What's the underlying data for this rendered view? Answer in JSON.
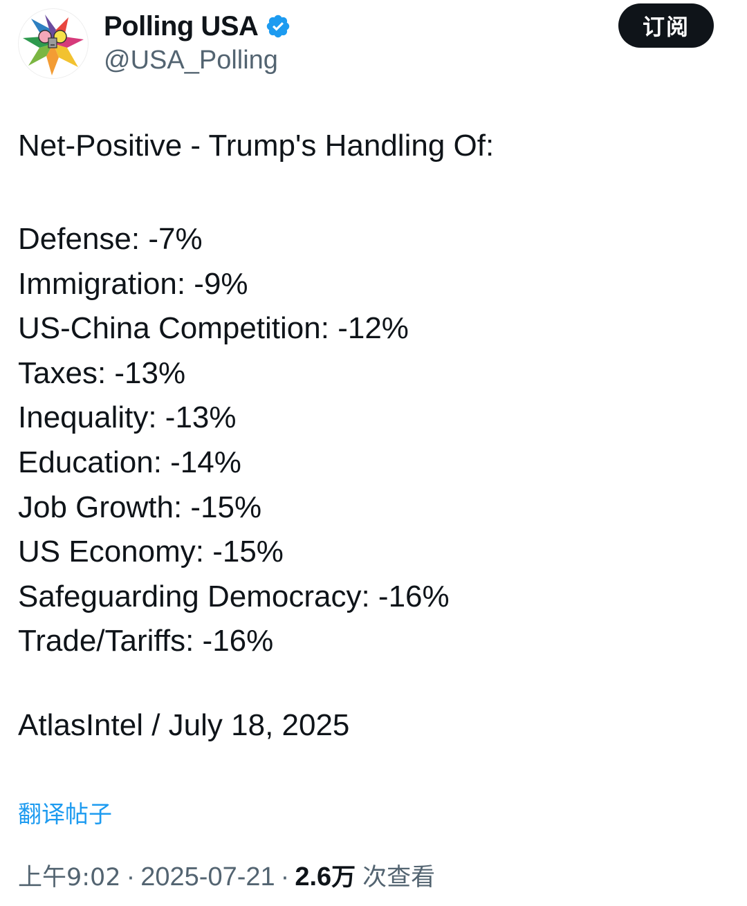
{
  "account": {
    "display_name": "Polling USA",
    "handle": "@USA_Polling",
    "verified": true,
    "avatar_icon": "colorful-star-logo-icon",
    "verified_icon": "verified-badge-icon",
    "verified_color": "#1d9bf0"
  },
  "header": {
    "subscribe_label": "订阅"
  },
  "tweet": {
    "heading": "Net-Positive - Trump's Handling Of:",
    "items": [
      "Defense: -7%",
      "Immigration: -9%",
      "US-China Competition: -12%",
      "Taxes: -13%",
      "Inequality: -13%",
      "Education: -14%",
      "Job Growth: -15%",
      "US Economy: -15%",
      "Safeguarding Democracy: -16%",
      "Trade/Tariffs: -16%"
    ],
    "source": "AtlasIntel / July 18, 2025"
  },
  "translate_label": "翻译帖子",
  "meta": {
    "time": "上午9:02",
    "date": "2025-07-21",
    "separator": "·",
    "views_number": "2.6",
    "views_unit": "万",
    "views_label": "次查看"
  },
  "colors": {
    "text_primary": "#0f1419",
    "text_secondary": "#536471",
    "link": "#1d9bf0",
    "button_bg": "#0f1419"
  }
}
